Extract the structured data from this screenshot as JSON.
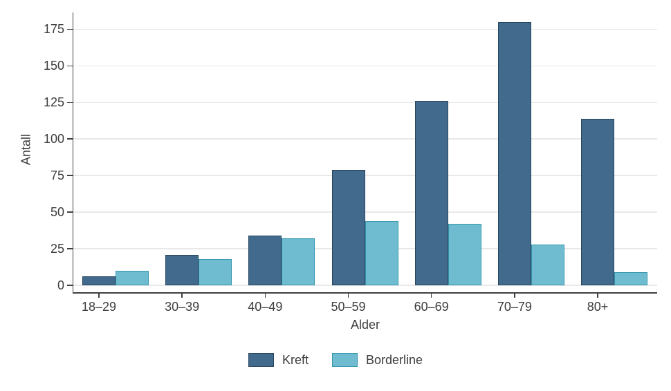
{
  "chart_data": {
    "type": "bar",
    "title": "",
    "categories": [
      "18–29",
      "30–39",
      "40–49",
      "50–59",
      "60–69",
      "70–79",
      "80+"
    ],
    "series": [
      {
        "name": "Kreft",
        "values": [
          6,
          21,
          34,
          79,
          126,
          180,
          114
        ],
        "fill": "#426a8c",
        "border": "#27455e"
      },
      {
        "name": "Borderline",
        "values": [
          10,
          18,
          32,
          44,
          42,
          28,
          9
        ],
        "fill": "#6fbcd0",
        "border": "#3597ad"
      }
    ],
    "xlabel": "Alder",
    "ylabel": "Antall",
    "ylim": [
      0,
      185
    ],
    "yticks": [
      0,
      25,
      50,
      75,
      100,
      125,
      150,
      175
    ],
    "grid": "horizontal",
    "legend_position": "bottom",
    "colors": {
      "axis": "#3f3f3f",
      "grid": "#e8e8e8",
      "text": "#3d3d3d",
      "background": "#ffffff"
    }
  }
}
